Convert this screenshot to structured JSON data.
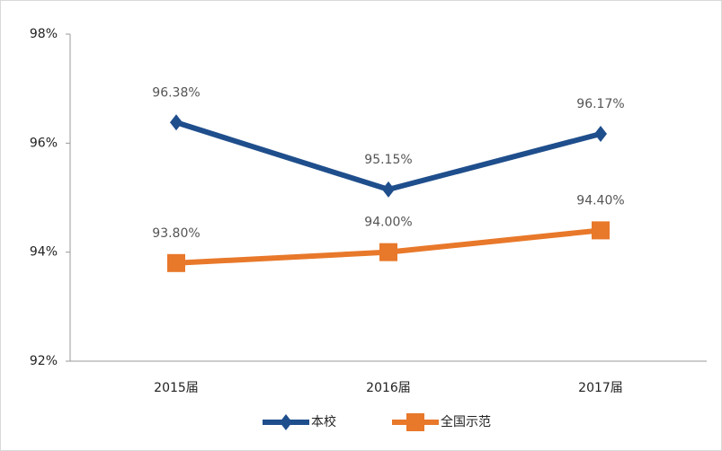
{
  "chart_data": {
    "type": "line",
    "categories": [
      "2015届",
      "2016届",
      "2017届"
    ],
    "series": [
      {
        "name": "本校",
        "color": "#1f4e8c",
        "marker": "diamond",
        "values": [
          96.38,
          95.15,
          96.17
        ],
        "value_labels": [
          "96.38%",
          "95.15%",
          "96.17%"
        ]
      },
      {
        "name": "全国示范",
        "color": "#e8782a",
        "marker": "square",
        "values": [
          93.8,
          94.0,
          94.4
        ],
        "value_labels": [
          "93.80%",
          "94.00%",
          "94.40%"
        ]
      }
    ],
    "ylim": [
      92,
      98
    ],
    "yticks": [
      {
        "value": 92,
        "label": "92%"
      },
      {
        "value": 94,
        "label": "94%"
      },
      {
        "value": 96,
        "label": "96%"
      },
      {
        "value": 98,
        "label": "98%"
      }
    ],
    "grid": false,
    "legend": "bottom"
  }
}
